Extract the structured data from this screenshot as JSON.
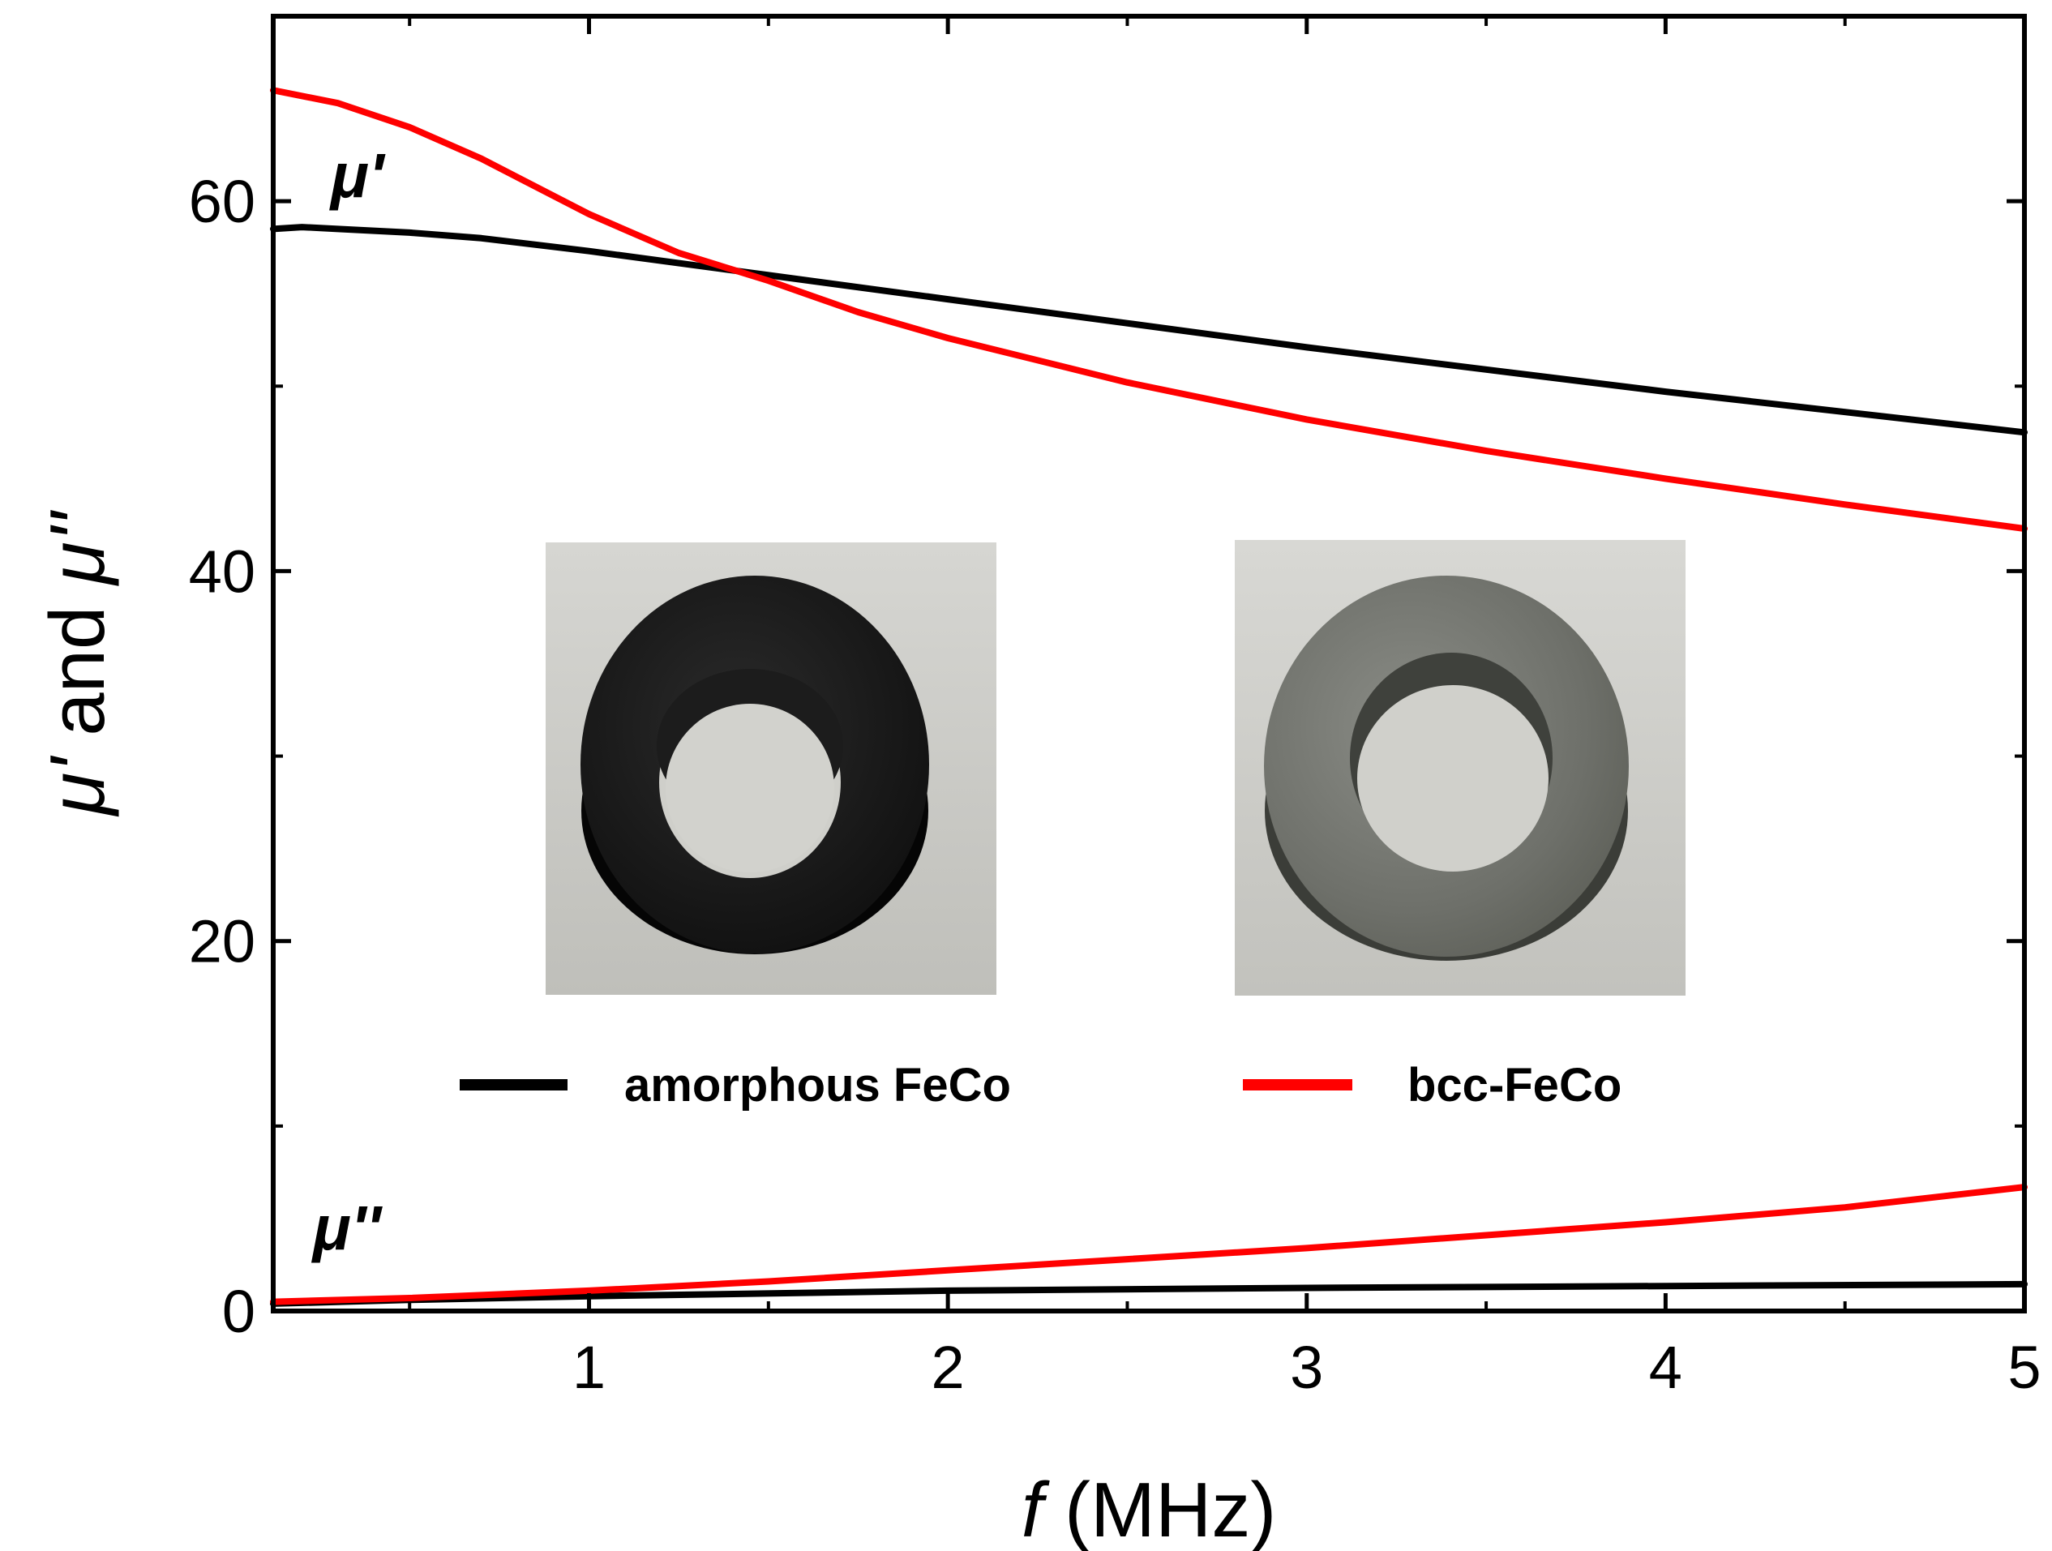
{
  "chart_data": {
    "type": "line",
    "title": "",
    "xlabel_italic": "f",
    "xlabel_rest": " (MHz)",
    "ylabel_mu1": "μ'",
    "ylabel_and": " and ",
    "ylabel_mu2": "μ''",
    "xlim": [
      0.12,
      5
    ],
    "ylim": [
      0,
      70
    ],
    "x_ticks": [
      1,
      2,
      3,
      4,
      5
    ],
    "y_ticks": [
      0,
      20,
      40,
      60
    ],
    "grid": false,
    "legend_placement": "center",
    "annotations": [
      {
        "text": "μ'",
        "x": 0.28,
        "y": 60.2
      },
      {
        "text": "μ''",
        "x": 0.23,
        "y": 3.3
      }
    ],
    "series": [
      {
        "name": "amorphous FeCo",
        "quantity": "μ'",
        "color": "#000000",
        "x": [
          0.12,
          0.2,
          0.3,
          0.4,
          0.5,
          0.7,
          1.0,
          1.5,
          2.0,
          2.5,
          3.0,
          3.5,
          4.0,
          4.5,
          5.0
        ],
        "y": [
          58.5,
          58.6,
          58.5,
          58.4,
          58.3,
          58.0,
          57.3,
          56.0,
          54.7,
          53.4,
          52.1,
          50.9,
          49.7,
          48.6,
          47.5
        ]
      },
      {
        "name": "bcc-FeCo",
        "quantity": "μ'",
        "color": "#ff0000",
        "x": [
          0.12,
          0.3,
          0.5,
          0.7,
          1.0,
          1.25,
          1.5,
          1.75,
          2.0,
          2.5,
          3.0,
          3.5,
          4.0,
          4.5,
          5.0
        ],
        "y": [
          66.0,
          65.3,
          64.0,
          62.3,
          59.3,
          57.2,
          55.7,
          54.0,
          52.6,
          50.2,
          48.2,
          46.5,
          45.0,
          43.6,
          42.3
        ]
      },
      {
        "name": "amorphous FeCo",
        "quantity": "μ''",
        "color": "#000000",
        "x": [
          0.12,
          0.5,
          1.0,
          2.0,
          3.0,
          4.0,
          5.0
        ],
        "y": [
          0.4,
          0.6,
          0.8,
          1.1,
          1.25,
          1.35,
          1.45
        ]
      },
      {
        "name": "bcc-FeCo",
        "quantity": "μ''",
        "color": "#ff0000",
        "x": [
          0.12,
          0.5,
          1.0,
          1.5,
          2.0,
          2.5,
          3.0,
          3.5,
          4.0,
          4.5,
          5.0
        ],
        "y": [
          0.5,
          0.7,
          1.1,
          1.6,
          2.2,
          2.8,
          3.4,
          4.1,
          4.8,
          5.6,
          6.7
        ]
      }
    ],
    "legend": [
      {
        "label": "amorphous FeCo",
        "color": "#000000"
      },
      {
        "label": "bcc-FeCo",
        "color": "#ff0000"
      }
    ],
    "insets": [
      {
        "name": "amorphous-feco-ring-photo",
        "ring_color": "#1a1a1a"
      },
      {
        "name": "bcc-feco-ring-photo",
        "ring_color": "#6f726c"
      }
    ]
  }
}
